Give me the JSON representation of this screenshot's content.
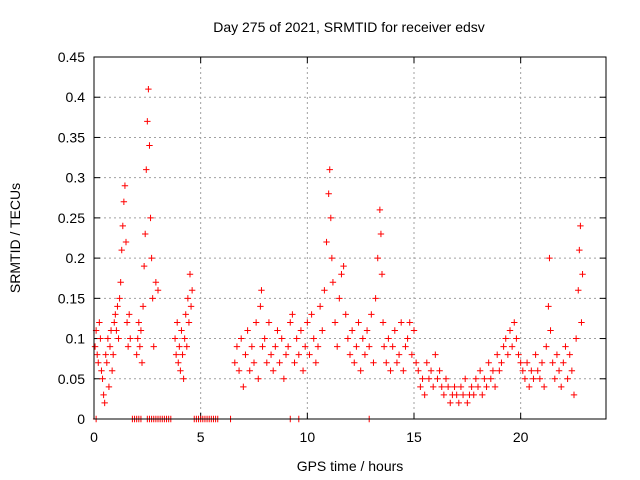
{
  "chart_data": {
    "type": "scatter",
    "title": "Day 275 of 2021, SRMTID for receiver edsv",
    "xlabel": "GPS time / hours",
    "ylabel": "SRMTID / TECUs",
    "xlim": [
      0,
      24
    ],
    "ylim": [
      0,
      0.45
    ],
    "xticks": [
      0,
      5,
      10,
      15,
      20
    ],
    "yticks": [
      0,
      0.05,
      0.1,
      0.15,
      0.2,
      0.25,
      0.3,
      0.35,
      0.4,
      0.45
    ],
    "xtick_labels": [
      "0",
      "5",
      "10",
      "15",
      "20"
    ],
    "ytick_labels": [
      "0",
      "0.05",
      "0.1",
      "0.15",
      "0.2",
      "0.25",
      "0.3",
      "0.35",
      "0.4",
      "0.45"
    ],
    "grid": true,
    "marker": "+",
    "color": "#ff0000",
    "series": [
      {
        "name": "SRMTID",
        "points": [
          [
            0.05,
            0.09
          ],
          [
            0.1,
            0.11
          ],
          [
            0.15,
            0.08
          ],
          [
            0.2,
            0.07
          ],
          [
            0.25,
            0.12
          ],
          [
            0.3,
            0.1
          ],
          [
            0.35,
            0.06
          ],
          [
            0.4,
            0.05
          ],
          [
            0.45,
            0.03
          ],
          [
            0.5,
            0.02
          ],
          [
            0.55,
            0.08
          ],
          [
            0.6,
            0.07
          ],
          [
            0.65,
            0.1
          ],
          [
            0.7,
            0.04
          ],
          [
            0.75,
            0.09
          ],
          [
            0.8,
            0.11
          ],
          [
            0.85,
            0.06
          ],
          [
            0.9,
            0.08
          ],
          [
            0.95,
            0.12
          ],
          [
            1.0,
            0.13
          ],
          [
            1.05,
            0.11
          ],
          [
            1.1,
            0.14
          ],
          [
            1.15,
            0.1
          ],
          [
            1.2,
            0.15
          ],
          [
            1.25,
            0.17
          ],
          [
            1.3,
            0.21
          ],
          [
            1.35,
            0.24
          ],
          [
            1.4,
            0.27
          ],
          [
            1.45,
            0.29
          ],
          [
            1.5,
            0.22
          ],
          [
            1.55,
            0.12
          ],
          [
            1.6,
            0.09
          ],
          [
            1.65,
            0.13
          ],
          [
            1.7,
            0.1
          ],
          [
            2.0,
            0.08
          ],
          [
            2.05,
            0.1
          ],
          [
            2.1,
            0.12
          ],
          [
            2.15,
            0.09
          ],
          [
            2.2,
            0.11
          ],
          [
            2.25,
            0.07
          ],
          [
            2.3,
            0.14
          ],
          [
            2.35,
            0.19
          ],
          [
            2.4,
            0.23
          ],
          [
            2.45,
            0.31
          ],
          [
            2.5,
            0.37
          ],
          [
            2.55,
            0.41
          ],
          [
            2.6,
            0.34
          ],
          [
            2.65,
            0.25
          ],
          [
            2.7,
            0.2
          ],
          [
            2.75,
            0.15
          ],
          [
            2.8,
            0.09
          ],
          [
            2.9,
            0.17
          ],
          [
            3.0,
            0.16
          ],
          [
            3.8,
            0.1
          ],
          [
            3.85,
            0.08
          ],
          [
            3.9,
            0.12
          ],
          [
            3.95,
            0.07
          ],
          [
            4.0,
            0.09
          ],
          [
            4.05,
            0.06
          ],
          [
            4.1,
            0.11
          ],
          [
            4.15,
            0.08
          ],
          [
            4.2,
            0.05
          ],
          [
            4.25,
            0.1
          ],
          [
            4.3,
            0.13
          ],
          [
            4.35,
            0.09
          ],
          [
            4.4,
            0.15
          ],
          [
            4.45,
            0.12
          ],
          [
            4.5,
            0.18
          ],
          [
            4.55,
            0.14
          ],
          [
            4.6,
            0.16
          ],
          [
            6.6,
            0.07
          ],
          [
            6.7,
            0.09
          ],
          [
            6.8,
            0.06
          ],
          [
            6.9,
            0.1
          ],
          [
            7.0,
            0.04
          ],
          [
            7.1,
            0.08
          ],
          [
            7.2,
            0.11
          ],
          [
            7.3,
            0.06
          ],
          [
            7.4,
            0.09
          ],
          [
            7.5,
            0.07
          ],
          [
            7.6,
            0.12
          ],
          [
            7.7,
            0.05
          ],
          [
            7.8,
            0.14
          ],
          [
            7.85,
            0.16
          ],
          [
            7.9,
            0.09
          ],
          [
            8.0,
            0.1
          ],
          [
            8.1,
            0.07
          ],
          [
            8.2,
            0.12
          ],
          [
            8.3,
            0.08
          ],
          [
            8.4,
            0.06
          ],
          [
            8.5,
            0.09
          ],
          [
            8.6,
            0.11
          ],
          [
            8.7,
            0.07
          ],
          [
            8.8,
            0.1
          ],
          [
            8.9,
            0.05
          ],
          [
            9.0,
            0.08
          ],
          [
            9.1,
            0.09
          ],
          [
            9.2,
            0.12
          ],
          [
            9.3,
            0.13
          ],
          [
            9.4,
            0.07
          ],
          [
            9.5,
            0.1
          ],
          [
            9.6,
            0.08
          ],
          [
            9.7,
            0.11
          ],
          [
            9.8,
            0.06
          ],
          [
            9.9,
            0.09
          ],
          [
            10.0,
            0.12
          ],
          [
            10.1,
            0.08
          ],
          [
            10.2,
            0.13
          ],
          [
            10.3,
            0.1
          ],
          [
            10.4,
            0.07
          ],
          [
            10.5,
            0.09
          ],
          [
            10.6,
            0.14
          ],
          [
            10.7,
            0.11
          ],
          [
            10.8,
            0.16
          ],
          [
            10.9,
            0.22
          ],
          [
            11.0,
            0.28
          ],
          [
            11.05,
            0.31
          ],
          [
            11.1,
            0.25
          ],
          [
            11.15,
            0.2
          ],
          [
            11.2,
            0.17
          ],
          [
            11.3,
            0.12
          ],
          [
            11.4,
            0.09
          ],
          [
            11.5,
            0.15
          ],
          [
            11.6,
            0.18
          ],
          [
            11.7,
            0.19
          ],
          [
            11.8,
            0.13
          ],
          [
            11.9,
            0.1
          ],
          [
            12.0,
            0.08
          ],
          [
            12.1,
            0.11
          ],
          [
            12.2,
            0.07
          ],
          [
            12.3,
            0.09
          ],
          [
            12.4,
            0.12
          ],
          [
            12.5,
            0.06
          ],
          [
            12.6,
            0.1
          ],
          [
            12.7,
            0.08
          ],
          [
            12.8,
            0.11
          ],
          [
            12.9,
            0.09
          ],
          [
            13.0,
            0.13
          ],
          [
            13.1,
            0.07
          ],
          [
            13.2,
            0.15
          ],
          [
            13.3,
            0.2
          ],
          [
            13.4,
            0.26
          ],
          [
            13.45,
            0.23
          ],
          [
            13.5,
            0.18
          ],
          [
            13.55,
            0.12
          ],
          [
            13.6,
            0.09
          ],
          [
            13.7,
            0.07
          ],
          [
            13.8,
            0.1
          ],
          [
            13.9,
            0.06
          ],
          [
            14.0,
            0.09
          ],
          [
            14.1,
            0.11
          ],
          [
            14.2,
            0.07
          ],
          [
            14.3,
            0.08
          ],
          [
            14.4,
            0.12
          ],
          [
            14.5,
            0.06
          ],
          [
            14.6,
            0.09
          ],
          [
            14.7,
            0.1
          ],
          [
            14.8,
            0.12
          ],
          [
            14.9,
            0.08
          ],
          [
            15.0,
            0.11
          ],
          [
            15.1,
            0.07
          ],
          [
            15.2,
            0.06
          ],
          [
            15.3,
            0.04
          ],
          [
            15.4,
            0.05
          ],
          [
            15.5,
            0.03
          ],
          [
            15.6,
            0.07
          ],
          [
            15.7,
            0.05
          ],
          [
            15.8,
            0.06
          ],
          [
            15.9,
            0.04
          ],
          [
            16.0,
            0.08
          ],
          [
            16.1,
            0.05
          ],
          [
            16.2,
            0.06
          ],
          [
            16.3,
            0.04
          ],
          [
            16.4,
            0.03
          ],
          [
            16.5,
            0.05
          ],
          [
            16.6,
            0.04
          ],
          [
            16.7,
            0.02
          ],
          [
            16.8,
            0.03
          ],
          [
            16.9,
            0.04
          ],
          [
            17.0,
            0.03
          ],
          [
            17.1,
            0.02
          ],
          [
            17.2,
            0.04
          ],
          [
            17.3,
            0.03
          ],
          [
            17.4,
            0.05
          ],
          [
            17.5,
            0.02
          ],
          [
            17.6,
            0.03
          ],
          [
            17.7,
            0.04
          ],
          [
            17.8,
            0.03
          ],
          [
            17.9,
            0.05
          ],
          [
            18.0,
            0.04
          ],
          [
            18.1,
            0.06
          ],
          [
            18.2,
            0.03
          ],
          [
            18.3,
            0.05
          ],
          [
            18.4,
            0.04
          ],
          [
            18.5,
            0.07
          ],
          [
            18.6,
            0.05
          ],
          [
            18.7,
            0.06
          ],
          [
            18.8,
            0.04
          ],
          [
            18.9,
            0.08
          ],
          [
            19.0,
            0.06
          ],
          [
            19.1,
            0.07
          ],
          [
            19.2,
            0.09
          ],
          [
            19.3,
            0.1
          ],
          [
            19.4,
            0.08
          ],
          [
            19.5,
            0.11
          ],
          [
            19.6,
            0.09
          ],
          [
            19.7,
            0.12
          ],
          [
            19.8,
            0.1
          ],
          [
            19.9,
            0.08
          ],
          [
            20.0,
            0.07
          ],
          [
            20.1,
            0.06
          ],
          [
            20.2,
            0.05
          ],
          [
            20.3,
            0.07
          ],
          [
            20.4,
            0.04
          ],
          [
            20.5,
            0.06
          ],
          [
            20.6,
            0.05
          ],
          [
            20.7,
            0.08
          ],
          [
            20.8,
            0.06
          ],
          [
            20.9,
            0.05
          ],
          [
            21.0,
            0.07
          ],
          [
            21.1,
            0.04
          ],
          [
            21.2,
            0.09
          ],
          [
            21.3,
            0.14
          ],
          [
            21.35,
            0.2
          ],
          [
            21.4,
            0.11
          ],
          [
            21.5,
            0.07
          ],
          [
            21.6,
            0.05
          ],
          [
            21.7,
            0.08
          ],
          [
            21.8,
            0.06
          ],
          [
            21.9,
            0.04
          ],
          [
            22.0,
            0.07
          ],
          [
            22.1,
            0.09
          ],
          [
            22.2,
            0.05
          ],
          [
            22.3,
            0.08
          ],
          [
            22.4,
            0.06
          ],
          [
            22.5,
            0.03
          ],
          [
            22.6,
            0.1
          ],
          [
            22.7,
            0.16
          ],
          [
            22.75,
            0.21
          ],
          [
            22.8,
            0.24
          ],
          [
            22.85,
            0.12
          ],
          [
            22.9,
            0.18
          ],
          [
            0.1,
            0.0
          ],
          [
            1.8,
            0.0
          ],
          [
            1.9,
            0.0
          ],
          [
            2.0,
            0.0
          ],
          [
            2.1,
            0.0
          ],
          [
            2.2,
            0.0
          ],
          [
            2.5,
            0.0
          ],
          [
            2.6,
            0.0
          ],
          [
            2.7,
            0.0
          ],
          [
            2.8,
            0.0
          ],
          [
            2.9,
            0.0
          ],
          [
            3.0,
            0.0
          ],
          [
            3.1,
            0.0
          ],
          [
            3.2,
            0.0
          ],
          [
            3.3,
            0.0
          ],
          [
            3.4,
            0.0
          ],
          [
            3.5,
            0.0
          ],
          [
            3.6,
            0.0
          ],
          [
            4.7,
            0.0
          ],
          [
            4.8,
            0.0
          ],
          [
            4.9,
            0.0
          ],
          [
            5.0,
            0.0
          ],
          [
            5.1,
            0.0
          ],
          [
            5.2,
            0.0
          ],
          [
            5.3,
            0.0
          ],
          [
            5.4,
            0.0
          ],
          [
            5.5,
            0.0
          ],
          [
            5.6,
            0.0
          ],
          [
            5.7,
            0.0
          ],
          [
            5.8,
            0.0
          ],
          [
            6.4,
            0.0
          ],
          [
            9.2,
            0.0
          ],
          [
            9.6,
            0.0
          ],
          [
            12.9,
            0.0
          ]
        ]
      }
    ]
  }
}
